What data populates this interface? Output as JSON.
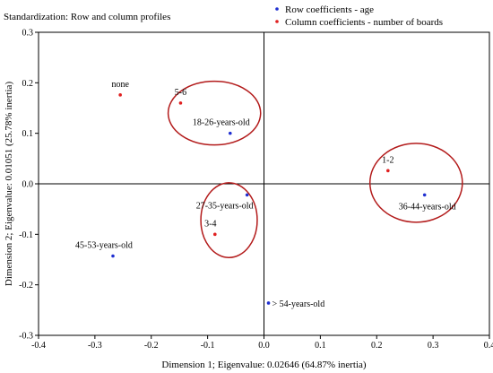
{
  "chart_data": {
    "type": "scatter",
    "title": "Standardization: Row and column profiles",
    "xlabel": "Dimension 1; Eigenvalue: 0.02646 (64.87% inertia)",
    "ylabel": "Dimension 2; Eigenvalue: 0.01051 (25.78% inertia)",
    "xlim": [
      -0.4,
      0.4
    ],
    "ylim": [
      -0.3,
      0.3
    ],
    "xticks": [
      -0.4,
      -0.3,
      -0.2,
      -0.1,
      0.0,
      0.1,
      0.2,
      0.3,
      0.4
    ],
    "xtick_labels": [
      "-0.4",
      "-0.3",
      "-0.2",
      "-0.1",
      "0.0",
      "0.1",
      "0.2",
      "0.3",
      "0.4"
    ],
    "yticks": [
      -0.3,
      -0.2,
      -0.1,
      0.0,
      0.1,
      0.2,
      0.3
    ],
    "ytick_labels": [
      "-0.3",
      "-0.2",
      "-0.1",
      "0.0",
      "0.1",
      "0.2",
      "0.3"
    ],
    "grid": false,
    "legend_position": "top-right",
    "series": [
      {
        "name": "Row coefficients - age",
        "color": "#1f2fd1",
        "points": [
          {
            "label": "18-26-years-old",
            "x": -0.06,
            "y": 0.1
          },
          {
            "label": "27-35-years-old",
            "x": -0.03,
            "y": -0.022
          },
          {
            "label": "36-44-years-old",
            "x": 0.285,
            "y": -0.022
          },
          {
            "label": "45-53-years-old",
            "x": -0.268,
            "y": -0.143
          },
          {
            "label": "> 54-years-old",
            "x": 0.008,
            "y": -0.236
          }
        ]
      },
      {
        "name": "Column coefficients - number of boards",
        "color": "#e02020",
        "points": [
          {
            "label": "none",
            "x": -0.255,
            "y": 0.176
          },
          {
            "label": "5-6",
            "x": -0.148,
            "y": 0.16
          },
          {
            "label": "1-2",
            "x": 0.22,
            "y": 0.026
          },
          {
            "label": "3-4",
            "x": -0.087,
            "y": -0.1
          }
        ]
      }
    ],
    "ellipses": [
      {
        "cx": -0.088,
        "cy": 0.14,
        "rx": 0.082,
        "ry": 0.063
      },
      {
        "cx": -0.062,
        "cy": -0.072,
        "rx": 0.05,
        "ry": 0.074
      },
      {
        "cx": 0.27,
        "cy": 0.002,
        "rx": 0.082,
        "ry": 0.078
      }
    ],
    "ellipse_color": "#b31b1b"
  }
}
